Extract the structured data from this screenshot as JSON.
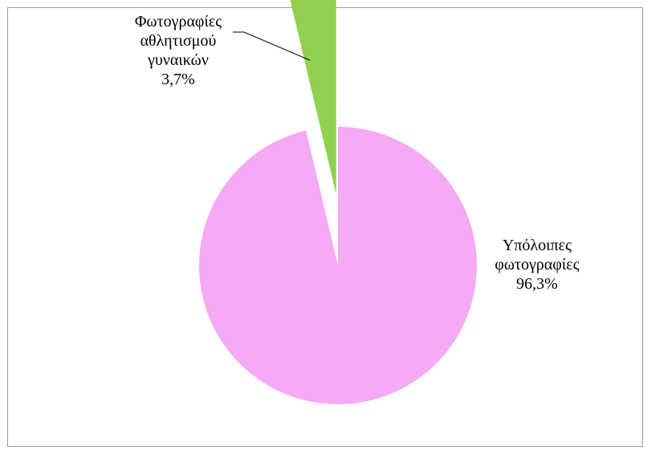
{
  "chart_data": {
    "type": "pie",
    "title": "",
    "slices": [
      {
        "label_lines": [
          "Φωτογραφίες",
          "αθλητισμού",
          "γυναικών"
        ],
        "value": 3.7,
        "value_label": "3,7%",
        "color": "#92d050",
        "exploded": true
      },
      {
        "label_lines": [
          "Υπόλοιπες",
          "φωτογραφίες"
        ],
        "value": 96.3,
        "value_label": "96,3%",
        "color": "#f4aaf4",
        "exploded": false
      }
    ],
    "legend": "none"
  }
}
